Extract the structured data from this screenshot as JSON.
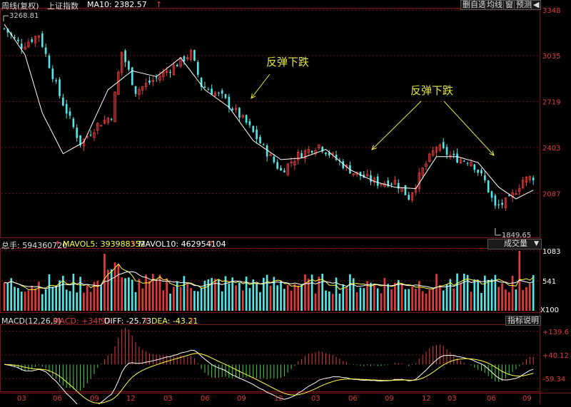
{
  "toolbar": {
    "title_name": "周线(复权)",
    "index_name": "上证指数",
    "ma_label": "MA10: 2382.57",
    "buttons": [
      "删自选",
      "均线",
      "窗",
      "预测"
    ],
    "close_glyph": "◀"
  },
  "price_pane": {
    "yaxis_ticks": [
      3348,
      3035,
      2719,
      2403,
      2087
    ],
    "high_label": "3268.81",
    "low_label": "1849.65",
    "annotations": [
      "反弹下跌",
      "反弹下跌"
    ]
  },
  "volume_pane": {
    "legend_total": "总手: 594360720",
    "legend_mavol5": "MAVOL5: 393988352",
    "legend_mavol10": "MAVOL10: 462954104",
    "dropdown_label": "成交量",
    "yaxis_ticks": [
      "1083",
      "541",
      "X100"
    ]
  },
  "macd_pane": {
    "legend_name": "MACD(12,26,9)",
    "legend_macd": "MACD: +34.97",
    "legend_diff": "DIFF: -25.73",
    "legend_dea": "DEA: -43.21",
    "help_button": "指标说明",
    "yaxis_ticks": [
      "+139.6",
      "+40.12",
      "-59.34"
    ]
  },
  "xaxis_months": [
    "03",
    "06",
    "09",
    "12",
    "03",
    "06",
    "09",
    "12",
    "03",
    "06",
    "09",
    "12",
    "03",
    "06",
    "09"
  ],
  "colors": {
    "up": "#e33b3b",
    "down": "#54e6e6",
    "ma": "#ffffff",
    "mavol5": "#ffff3f",
    "macd_pos": "#e33b3b",
    "macd_neg": "#3fd83f",
    "annotation": "#e6e63c",
    "axis_text": "#e33b3b",
    "grid": "#7a1414"
  },
  "chart_data": {
    "type": "candlestick",
    "title": "上证指数",
    "ylim": [
      1800,
      3348
    ],
    "price_trend": [
      {
        "week": 0,
        "close": 3220
      },
      {
        "week": 5,
        "close": 3100
      },
      {
        "week": 10,
        "close": 3180
      },
      {
        "week": 16,
        "close": 2760
      },
      {
        "week": 22,
        "close": 2430
      },
      {
        "week": 27,
        "close": 2560
      },
      {
        "week": 31,
        "close": 2620
      },
      {
        "week": 34,
        "close": 3060
      },
      {
        "week": 38,
        "close": 2790
      },
      {
        "week": 44,
        "close": 2880
      },
      {
        "week": 49,
        "close": 2960
      },
      {
        "week": 54,
        "close": 3050
      },
      {
        "week": 57,
        "close": 2830
      },
      {
        "week": 63,
        "close": 2750
      },
      {
        "week": 70,
        "close": 2570
      },
      {
        "week": 75,
        "close": 2400
      },
      {
        "week": 80,
        "close": 2240
      },
      {
        "week": 85,
        "close": 2350
      },
      {
        "week": 91,
        "close": 2420
      },
      {
        "week": 96,
        "close": 2320
      },
      {
        "week": 101,
        "close": 2230
      },
      {
        "week": 108,
        "close": 2160
      },
      {
        "week": 113,
        "close": 2170
      },
      {
        "week": 117,
        "close": 2060
      },
      {
        "week": 121,
        "close": 2250
      },
      {
        "week": 125,
        "close": 2410
      },
      {
        "week": 130,
        "close": 2330
      },
      {
        "week": 135,
        "close": 2310
      },
      {
        "week": 139,
        "close": 2170
      },
      {
        "week": 142,
        "close": 1990
      },
      {
        "week": 146,
        "close": 2040
      },
      {
        "week": 150,
        "close": 2180
      },
      {
        "week": 153,
        "close": 2200
      }
    ],
    "ma10_trend": [
      {
        "week": 0,
        "value": 3250
      },
      {
        "week": 6,
        "value": 3040
      },
      {
        "week": 11,
        "value": 2640
      },
      {
        "week": 17,
        "value": 2360
      },
      {
        "week": 23,
        "value": 2440
      },
      {
        "week": 30,
        "value": 2800
      },
      {
        "week": 37,
        "value": 2930
      },
      {
        "week": 44,
        "value": 2890
      },
      {
        "week": 51,
        "value": 3020
      },
      {
        "week": 58,
        "value": 2800
      },
      {
        "week": 65,
        "value": 2680
      },
      {
        "week": 72,
        "value": 2450
      },
      {
        "week": 80,
        "value": 2320
      },
      {
        "week": 86,
        "value": 2330
      },
      {
        "week": 93,
        "value": 2390
      },
      {
        "week": 100,
        "value": 2250
      },
      {
        "week": 107,
        "value": 2170
      },
      {
        "week": 113,
        "value": 2130
      },
      {
        "week": 119,
        "value": 2120
      },
      {
        "week": 125,
        "value": 2340
      },
      {
        "week": 131,
        "value": 2340
      },
      {
        "week": 137,
        "value": 2300
      },
      {
        "week": 143,
        "value": 2130
      },
      {
        "week": 148,
        "value": 2050
      },
      {
        "week": 153,
        "value": 2110
      }
    ],
    "volume_max": 1083,
    "macd_range": [
      -110,
      160
    ]
  }
}
